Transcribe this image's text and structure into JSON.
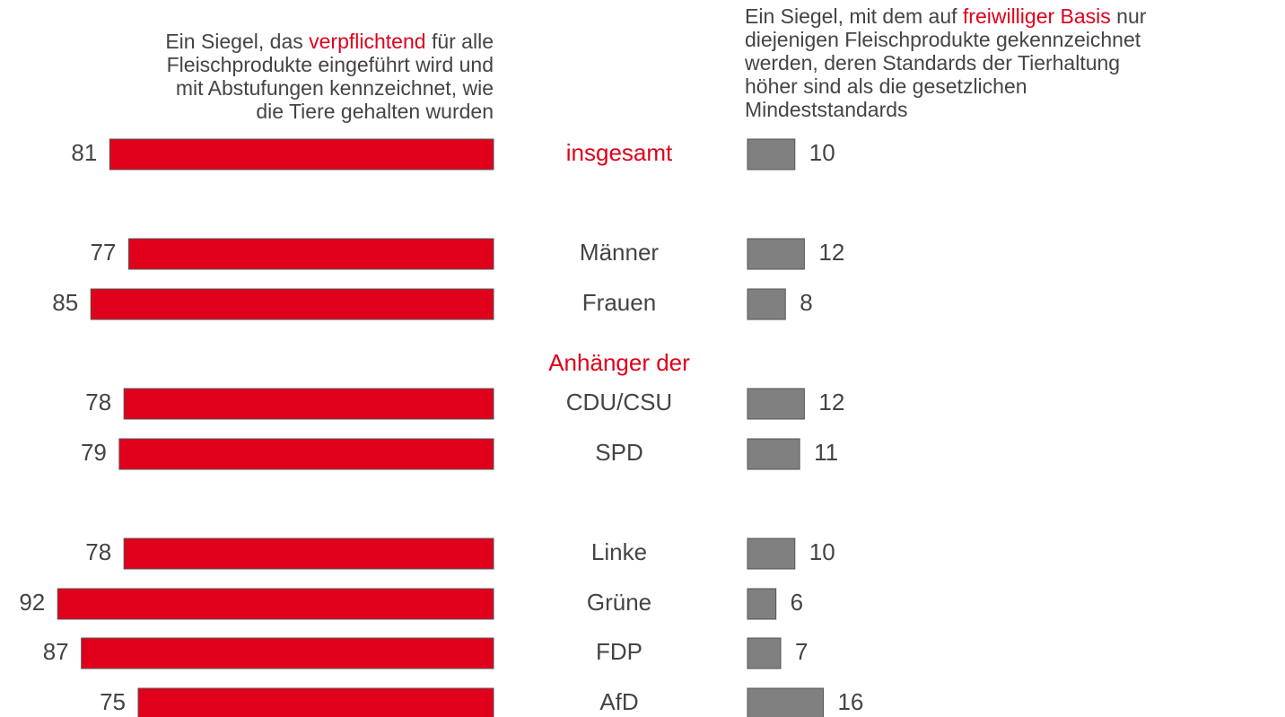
{
  "chart_data": {
    "type": "bar",
    "categories": [
      "insgesamt",
      "Männer",
      "Frauen",
      "CDU/CSU",
      "SPD",
      "Linke",
      "Grüne",
      "FDP",
      "AfD"
    ],
    "category_colors": [
      "#e0001b",
      "#444444",
      "#444444",
      "#444444",
      "#444444",
      "#444444",
      "#444444",
      "#444444",
      "#444444"
    ],
    "group_label": "Anhänger der",
    "group_label_color": "#e0001b",
    "highlight_color": "#e0001b",
    "series": [
      {
        "header": [
          [
            "Ein Siegel, das ",
            "verpflichtend",
            " für alle"
          ],
          [
            "Fleischprodukte eingeführt wird und"
          ],
          [
            "mit Abstufungen kennzeichnet, wie"
          ],
          [
            "die Tiere gehalten wurden"
          ]
        ],
        "highlight": "verpflichtend",
        "color": "#e0001b",
        "values": [
          81,
          77,
          85,
          78,
          79,
          78,
          92,
          87,
          75
        ]
      },
      {
        "header": [
          [
            "Ein Siegel, mit dem auf ",
            "freiwilliger Basis",
            " nur"
          ],
          [
            "diejenigen Fleischprodukte gekennzeichnet"
          ],
          [
            "werden, deren Standards der Tierhaltung"
          ],
          [
            "höher sind als die gesetzlichen"
          ],
          [
            "Mindeststandards"
          ]
        ],
        "highlight": "freiwilliger Basis",
        "color": "#808080",
        "values": [
          10,
          12,
          8,
          12,
          11,
          10,
          6,
          7,
          16
        ]
      }
    ]
  }
}
